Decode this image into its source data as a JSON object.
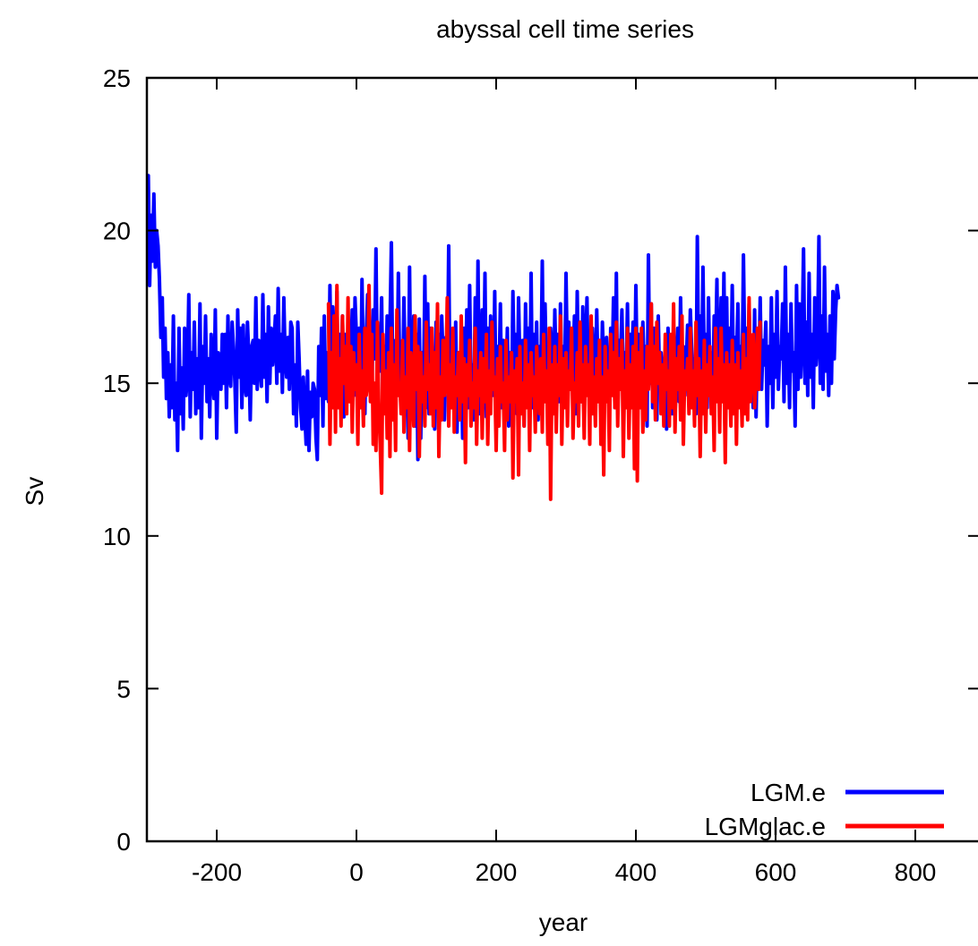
{
  "chart_data": {
    "type": "line",
    "title": "abyssal cell time series",
    "xlabel": "year",
    "ylabel": "Sv",
    "xlim": [
      -300,
      900
    ],
    "ylim": [
      0,
      25
    ],
    "x_ticks": [
      -200,
      0,
      200,
      400,
      600,
      800
    ],
    "y_ticks": [
      0,
      5,
      10,
      15,
      20,
      25
    ],
    "grid": false,
    "legend_position": "bottom-right",
    "series": [
      {
        "name": "LGM.e",
        "color": "#0000ff",
        "x_start": -300,
        "x_step": 2,
        "values": [
          20.0,
          21.8,
          18.2,
          20.5,
          19.0,
          21.2,
          18.8,
          20.0,
          19.5,
          18.4,
          16.5,
          17.8,
          15.2,
          16.8,
          14.5,
          16.0,
          13.9,
          15.6,
          14.2,
          17.2,
          13.8,
          15.0,
          12.8,
          16.8,
          14.0,
          15.5,
          13.5,
          16.8,
          14.6,
          15.2,
          17.9,
          13.9,
          16.0,
          14.8,
          17.0,
          14.0,
          15.8,
          14.2,
          17.6,
          13.2,
          16.2,
          15.0,
          17.2,
          14.4,
          15.8,
          13.9,
          16.6,
          15.2,
          14.5,
          17.4,
          13.2,
          16.0,
          15.5,
          14.8,
          16.6,
          15.0,
          16.6,
          14.2,
          17.2,
          15.3,
          14.9,
          17.0,
          16.2,
          15.0,
          13.4,
          17.4,
          15.2,
          16.8,
          14.2,
          16.9,
          15.0,
          14.6,
          17.0,
          15.8,
          13.8,
          16.2,
          16.4,
          15.0,
          17.8,
          14.8,
          16.4,
          15.6,
          14.9,
          17.9,
          15.2,
          16.6,
          14.4,
          17.5,
          15.0,
          16.8,
          15.6,
          16.3,
          17.2,
          15.0,
          18.1,
          15.4,
          16.6,
          14.7,
          17.8,
          15.8,
          15.2,
          16.5,
          14.8,
          17.0,
          16.8,
          14.0,
          15.6,
          13.6,
          17.0,
          15.8,
          14.2,
          13.5,
          15.2,
          14.0,
          13.0,
          15.4,
          12.8,
          14.7,
          13.9,
          15.0,
          14.8,
          13.2,
          12.5,
          16.2,
          14.6,
          16.8,
          13.6,
          17.2,
          14.5,
          16.0,
          14.4,
          18.2,
          14.8,
          17.5,
          15.2,
          16.0,
          18.0,
          14.2,
          16.6,
          15.3,
          17.2,
          13.9,
          16.6,
          15.5,
          14.8,
          16.2,
          15.8,
          17.4,
          14.6,
          17.8,
          16.5,
          15.0,
          16.8,
          14.3,
          18.4,
          15.2,
          14.0,
          16.5,
          17.9,
          15.2,
          16.8,
          14.6,
          17.4,
          15.8,
          19.4,
          14.8,
          16.6,
          15.4,
          17.8,
          14.2,
          16.2,
          15.0,
          17.2,
          14.6,
          16.8,
          19.6,
          15.0,
          15.2,
          16.4,
          14.6,
          18.6,
          15.0,
          16.0,
          14.4,
          17.8,
          15.2,
          16.2,
          13.2,
          18.8,
          14.2,
          15.2,
          17.2,
          13.6,
          16.6,
          12.5,
          17.1,
          13.2,
          16.0,
          14.8,
          18.5,
          14.2,
          17.6,
          14.0,
          16.8,
          15.2,
          15.8,
          13.5,
          17.0,
          15.0,
          16.6,
          14.3,
          17.2,
          15.8,
          13.8,
          16.5,
          14.8,
          19.5,
          14.6,
          15.8,
          16.4,
          14.0,
          17.0,
          13.4,
          16.0,
          14.8,
          15.5,
          13.2,
          16.8,
          15.2,
          17.4,
          14.2,
          18.2,
          14.8,
          15.6,
          13.8,
          17.8,
          14.4,
          19.0,
          14.0,
          16.0,
          17.4,
          15.2,
          18.6,
          13.9,
          16.8,
          14.2,
          17.2,
          15.6,
          14.6,
          18.0,
          13.8,
          16.2,
          15.0,
          17.6,
          14.2,
          16.4,
          15.8,
          14.8,
          16.8,
          13.6,
          16.0,
          14.4,
          18.0,
          15.2,
          16.6,
          14.0,
          17.8,
          15.6,
          14.8,
          16.4,
          13.6,
          17.6,
          15.2,
          16.8,
          14.0,
          18.6,
          14.2,
          16.6,
          15.4,
          17.0,
          13.8,
          16.2,
          15.0,
          19.0,
          14.6,
          17.6,
          15.2,
          16.0,
          13.5,
          16.8,
          15.8,
          14.8,
          17.4,
          15.2,
          16.6,
          14.4,
          17.6,
          15.0,
          16.2,
          14.6,
          18.6,
          15.4,
          17.0,
          14.8,
          16.4,
          15.6,
          17.2,
          14.0,
          18.0,
          15.2,
          16.8,
          14.4,
          17.5,
          15.6,
          16.0,
          17.8,
          14.9,
          16.2,
          14.2,
          16.8,
          15.4,
          14.6,
          17.4,
          15.0,
          16.4,
          14.2,
          17.0,
          15.6,
          14.8,
          16.5,
          15.0,
          14.0,
          16.8,
          15.4,
          17.8,
          14.2,
          18.6,
          14.0,
          16.4,
          15.8,
          17.4,
          14.8,
          16.0,
          15.2,
          17.6,
          14.4,
          16.6,
          15.6,
          17.0,
          14.4,
          18.2,
          15.0,
          16.6,
          15.8,
          14.6,
          17.0,
          15.4,
          16.2,
          13.6,
          19.2,
          15.0,
          17.6,
          14.2,
          16.8,
          15.8,
          13.8,
          17.2,
          15.0,
          16.0,
          15.4,
          14.2,
          15.8,
          13.5,
          16.8,
          14.6,
          15.6,
          14.0,
          16.4,
          13.9,
          15.2,
          16.8,
          14.4,
          17.8,
          15.0,
          16.2,
          14.6,
          15.6,
          16.9,
          15.2,
          17.4,
          16.0,
          14.6,
          15.8,
          14.0,
          19.8,
          15.0,
          17.2,
          14.6,
          18.8,
          15.4,
          16.6,
          14.2,
          17.8,
          15.0,
          16.0,
          14.4,
          17.2,
          15.8,
          18.4,
          14.6,
          15.8,
          17.8,
          15.0,
          18.6,
          14.6,
          17.8,
          14.2,
          16.8,
          15.2,
          18.2,
          14.8,
          16.5,
          15.6,
          17.6,
          14.8,
          16.2,
          15.0,
          19.2,
          15.6,
          16.8,
          14.4,
          17.6,
          15.0,
          16.0,
          14.2,
          17.4,
          13.9,
          16.6,
          15.2,
          17.8,
          14.8,
          16.4,
          15.6,
          17.0,
          13.6,
          16.2,
          15.0,
          17.8,
          14.2,
          16.6,
          15.2,
          18.0,
          14.8,
          16.2,
          15.8,
          17.6,
          14.4,
          18.8,
          15.0,
          16.6,
          14.2,
          17.6,
          15.4,
          16.0,
          13.6,
          18.2,
          14.8,
          17.6,
          15.2,
          16.4,
          19.4,
          15.0,
          17.0,
          14.6,
          18.6,
          15.2,
          16.6,
          14.2,
          17.8,
          15.6,
          16.4,
          19.8,
          15.0,
          17.2,
          14.8,
          18.8,
          15.4,
          16.6,
          14.6,
          17.2,
          15.0,
          18.0,
          15.8,
          17.4,
          18.2,
          17.8
        ]
      },
      {
        "name": "LGMglac.e",
        "color": "#ff0000",
        "x_start": -40,
        "x_step": 2,
        "values": [
          17.6,
          13.0,
          16.0,
          14.2,
          17.2,
          13.4,
          18.2,
          14.2,
          15.8,
          13.6,
          17.2,
          15.0,
          16.2,
          14.0,
          17.8,
          14.4,
          16.2,
          13.4,
          16.0,
          14.8,
          15.6,
          13.0,
          16.6,
          14.2,
          15.4,
          13.6,
          16.8,
          14.6,
          15.0,
          18.2,
          14.4,
          16.6,
          13.0,
          15.0,
          12.8,
          17.0,
          14.2,
          13.0,
          11.4,
          16.6,
          14.0,
          15.4,
          13.2,
          16.0,
          12.6,
          16.8,
          13.8,
          15.6,
          12.8,
          17.4,
          14.6,
          15.0,
          14.0,
          16.4,
          13.4,
          15.2,
          14.2,
          16.8,
          12.8,
          16.0,
          15.0,
          13.6,
          17.2,
          14.8,
          16.2,
          12.6,
          16.0,
          14.4,
          15.2,
          13.6,
          17.0,
          14.8,
          15.6,
          14.0,
          16.8,
          13.6,
          16.0,
          14.2,
          17.6,
          12.6,
          15.2,
          13.8,
          16.4,
          14.6,
          15.0,
          17.8,
          13.6,
          15.6,
          14.2,
          16.8,
          13.4,
          15.2,
          14.6,
          16.0,
          13.8,
          17.2,
          14.4,
          15.8,
          12.4,
          15.6,
          14.6,
          16.4,
          13.6,
          15.0,
          14.2,
          16.8,
          13.0,
          15.4,
          14.6,
          16.0,
          13.2,
          15.8,
          14.4,
          16.6,
          13.0,
          15.4,
          14.0,
          17.0,
          14.8,
          15.2,
          12.8,
          15.8,
          13.6,
          16.2,
          14.4,
          15.0,
          12.8,
          16.4,
          13.8,
          15.2,
          14.4,
          16.0,
          11.9,
          15.4,
          14.4,
          15.8,
          12.0,
          16.2,
          14.0,
          15.0,
          13.6,
          16.4,
          14.2,
          15.6,
          12.8,
          16.0,
          14.6,
          15.2,
          13.4,
          16.2,
          15.0,
          14.0,
          15.8,
          13.4,
          16.6,
          14.4,
          15.4,
          13.0,
          16.8,
          11.2,
          15.6,
          14.0,
          16.2,
          13.4,
          15.6,
          14.6,
          17.2,
          13.0,
          15.8,
          14.2,
          16.0,
          13.6,
          15.4,
          14.8,
          16.8,
          13.2,
          15.0,
          14.4,
          16.0,
          13.6,
          17.0,
          14.4,
          15.6,
          13.2,
          16.2,
          14.6,
          15.6,
          13.0,
          17.2,
          14.0,
          15.2,
          13.6,
          15.8,
          14.4,
          16.4,
          13.0,
          15.2,
          12.0,
          16.2,
          14.4,
          15.4,
          12.8,
          16.6,
          14.6,
          16.0,
          14.2,
          17.0,
          13.6,
          15.8,
          14.8,
          16.4,
          12.6,
          15.4,
          14.2,
          16.8,
          13.2,
          15.6,
          14.2,
          16.2,
          12.2,
          16.8,
          11.8,
          16.0,
          14.2,
          16.8,
          13.4,
          15.4,
          13.8,
          16.2,
          14.8,
          15.6,
          17.6,
          14.4,
          16.2,
          13.8,
          17.0,
          15.0,
          16.0,
          14.0,
          15.6,
          13.6,
          16.6,
          14.8,
          15.4,
          13.6,
          16.6,
          14.2,
          17.6,
          13.4,
          15.8,
          14.8,
          16.2,
          13.8,
          17.2,
          13.0,
          15.4,
          14.8,
          15.8,
          14.0,
          16.8,
          14.2,
          15.4,
          13.6,
          17.0,
          14.6,
          15.8,
          12.6,
          15.4,
          14.0,
          16.4,
          13.4,
          15.6,
          14.6,
          16.2,
          14.0,
          15.2,
          12.8,
          16.8,
          14.4,
          15.8,
          13.4,
          16.8,
          14.4,
          15.6,
          12.4,
          16.0,
          14.2,
          15.6,
          13.6,
          16.4,
          14.0,
          15.6,
          13.0,
          16.0,
          14.2,
          15.4,
          13.6,
          16.6,
          14.0,
          15.8,
          13.8,
          17.8,
          14.4,
          15.6,
          16.6,
          14.2,
          15.2,
          16.8,
          14.8,
          17.0
        ]
      }
    ]
  }
}
